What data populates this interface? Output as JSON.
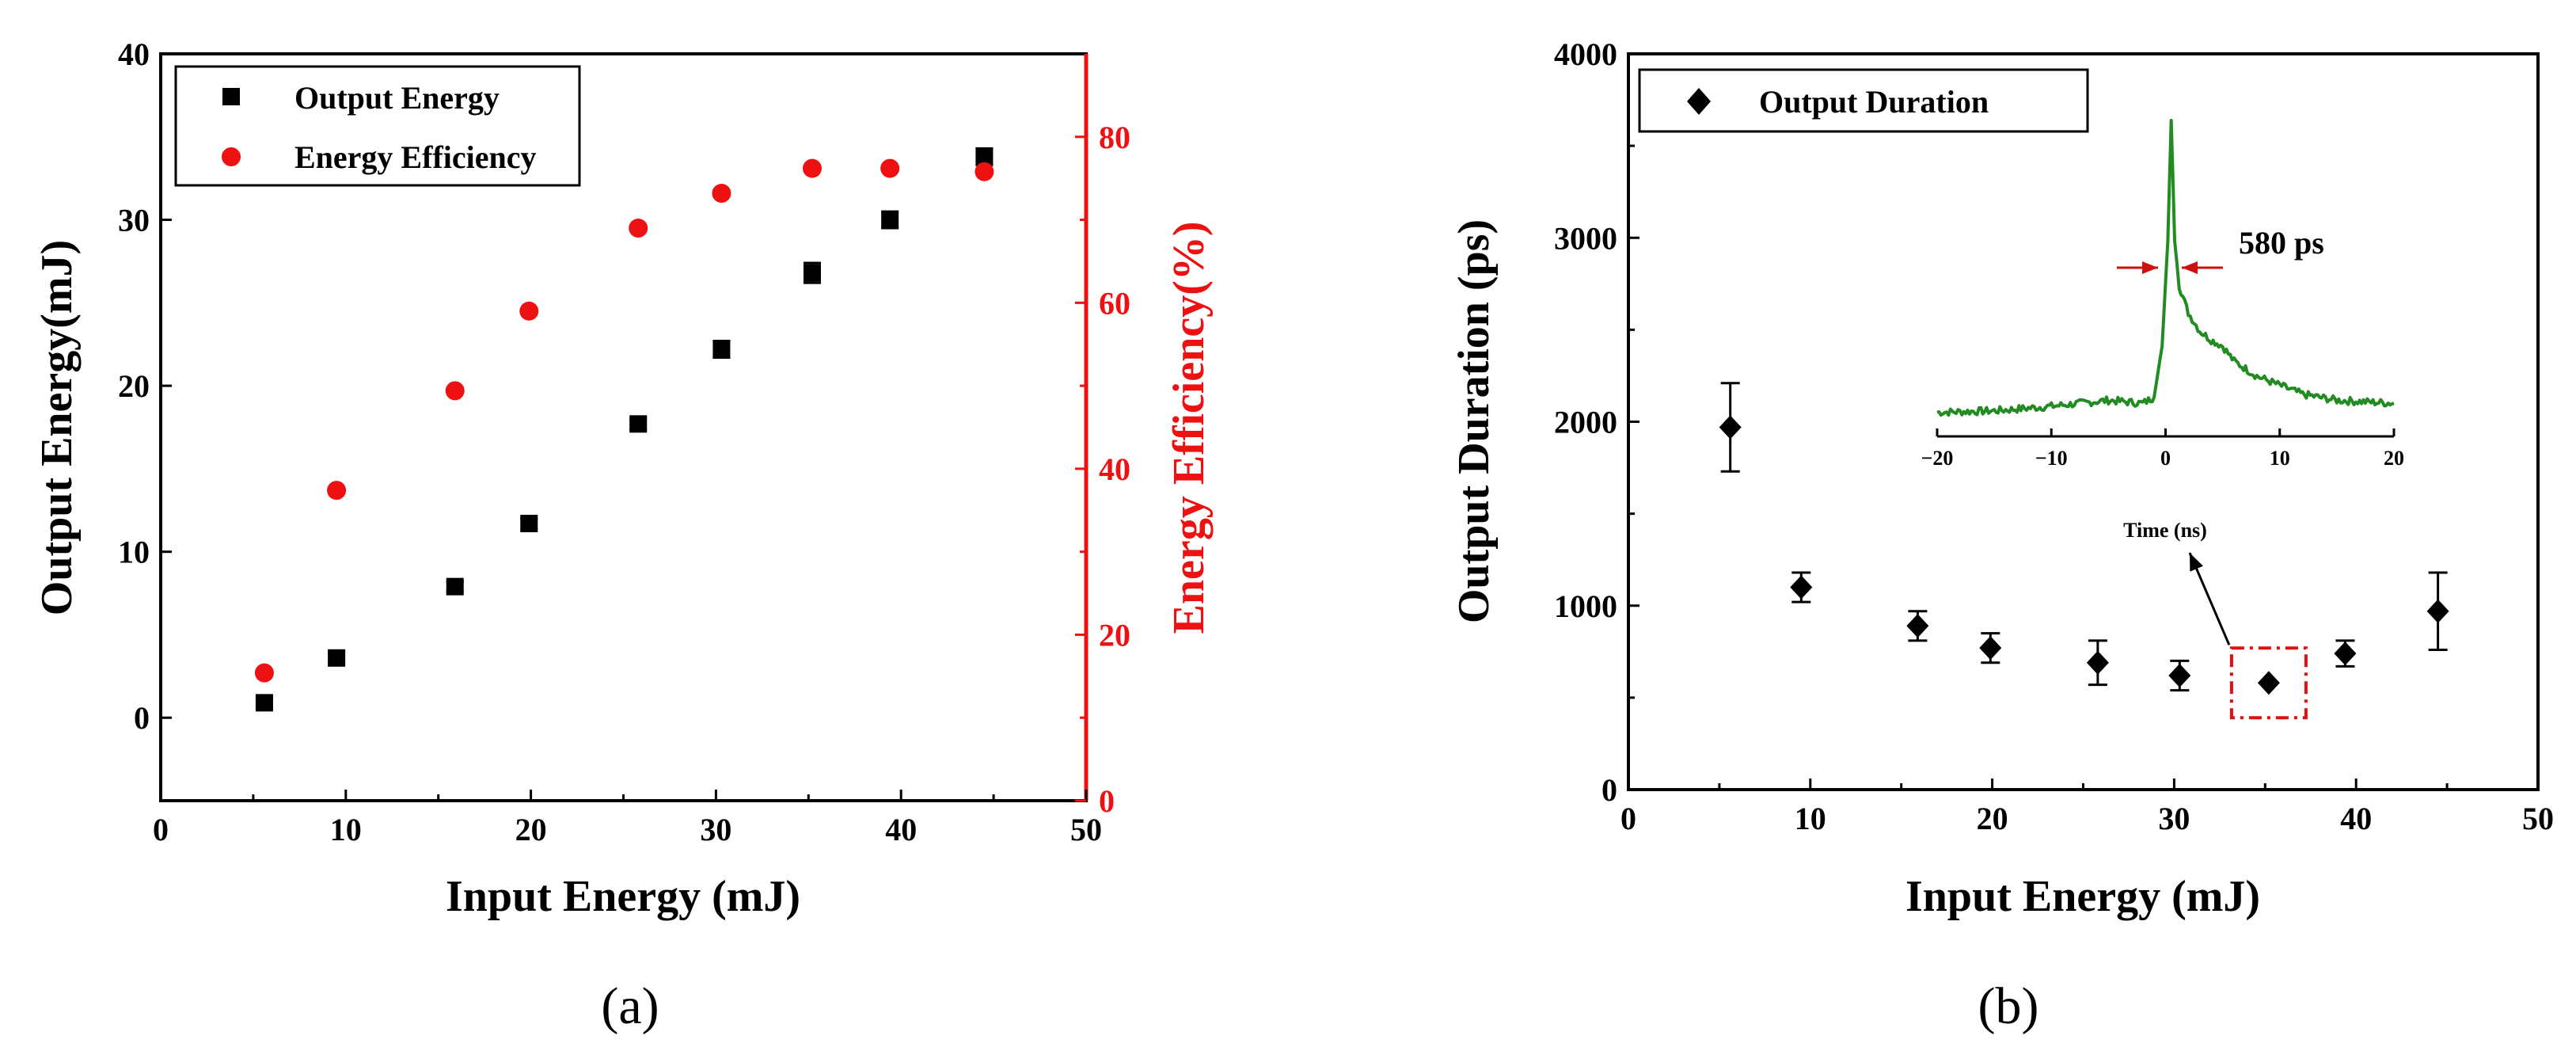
{
  "chart_data": [
    {
      "panel_label": "(a)",
      "type": "scatter",
      "xlabel": "Input Energy (mJ)",
      "xlim": [
        0,
        50
      ],
      "xticks": [
        0,
        10,
        20,
        30,
        40,
        50
      ],
      "left_axis": {
        "label": "Output Energy(mJ)",
        "ylim": [
          -5,
          40
        ],
        "ticks": [
          0,
          10,
          20,
          30,
          40
        ]
      },
      "right_axis": {
        "label": "Energy Efficiency(%)",
        "ylim": [
          0,
          90
        ],
        "ticks": [
          0,
          20,
          40,
          60,
          80
        ],
        "color": "#ee1111"
      },
      "x": [
        5.6,
        9.5,
        15.9,
        19.9,
        25.8,
        30.3,
        35.2,
        39.4,
        44.5
      ],
      "series": [
        {
          "name": "Output Energy",
          "axis": "left",
          "marker": "square",
          "color": "#000000",
          "values": [
            0.9,
            3.6,
            7.9,
            11.7,
            17.7,
            22.2,
            26.8,
            30.0,
            33.8
          ],
          "errors": [
            0.3,
            0.3,
            0.3,
            0.3,
            0.3,
            0.5,
            0.6,
            0.5,
            0.5
          ]
        },
        {
          "name": "Energy Efficiency",
          "axis": "right",
          "marker": "circle",
          "color": "#ee1111",
          "values": [
            15.4,
            37.4,
            49.4,
            59.0,
            69.0,
            73.2,
            76.2,
            76.2,
            75.8
          ]
        }
      ],
      "legend": "top-left"
    },
    {
      "panel_label": "(b)",
      "type": "scatter",
      "xlabel": "Input Energy (mJ)",
      "ylabel": "Output Duration (ps)",
      "xlim": [
        0,
        50
      ],
      "xticks": [
        0,
        10,
        20,
        30,
        40,
        50
      ],
      "ylim": [
        0,
        4000
      ],
      "yticks": [
        0,
        1000,
        2000,
        3000,
        4000
      ],
      "x": [
        5.6,
        9.5,
        15.9,
        19.9,
        25.8,
        30.3,
        35.2,
        39.4,
        44.5
      ],
      "series": [
        {
          "name": "Output Duration",
          "marker": "diamond",
          "color": "#000000",
          "values": [
            1970,
            1100,
            890,
            770,
            690,
            620,
            580,
            740,
            970
          ],
          "errors": [
            240,
            80,
            80,
            80,
            120,
            80,
            0,
            70,
            210
          ]
        }
      ],
      "legend": "top-left",
      "highlight": {
        "x": 35.2,
        "y": 580,
        "color": "#dd1111"
      },
      "inset": {
        "type": "line",
        "xlabel": "Time (ns)",
        "xlim": [
          -20,
          20
        ],
        "xticks": [
          -20,
          -10,
          0,
          10,
          20
        ],
        "ylim": [
          0,
          1
        ],
        "color": "#228b22",
        "annotation": "580 ps",
        "x": [
          -20,
          -15,
          -10,
          -5,
          -2,
          -1,
          -0.3,
          0.2,
          0.5,
          0.8,
          1.2,
          2,
          3,
          4,
          5,
          6,
          8,
          10,
          12,
          15,
          20
        ],
        "y": [
          0.03,
          0.035,
          0.05,
          0.07,
          0.06,
          0.08,
          0.25,
          0.6,
          1.0,
          0.6,
          0.45,
          0.36,
          0.3,
          0.27,
          0.25,
          0.2,
          0.15,
          0.12,
          0.09,
          0.07,
          0.06
        ]
      }
    }
  ]
}
